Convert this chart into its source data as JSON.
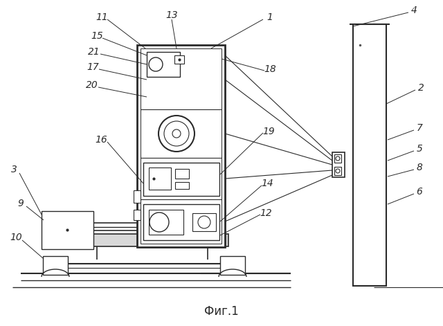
{
  "title": "Фиг.1",
  "background_color": "#ffffff",
  "line_color": "#2a2a2a",
  "fig_width": 6.4,
  "fig_height": 4.71
}
